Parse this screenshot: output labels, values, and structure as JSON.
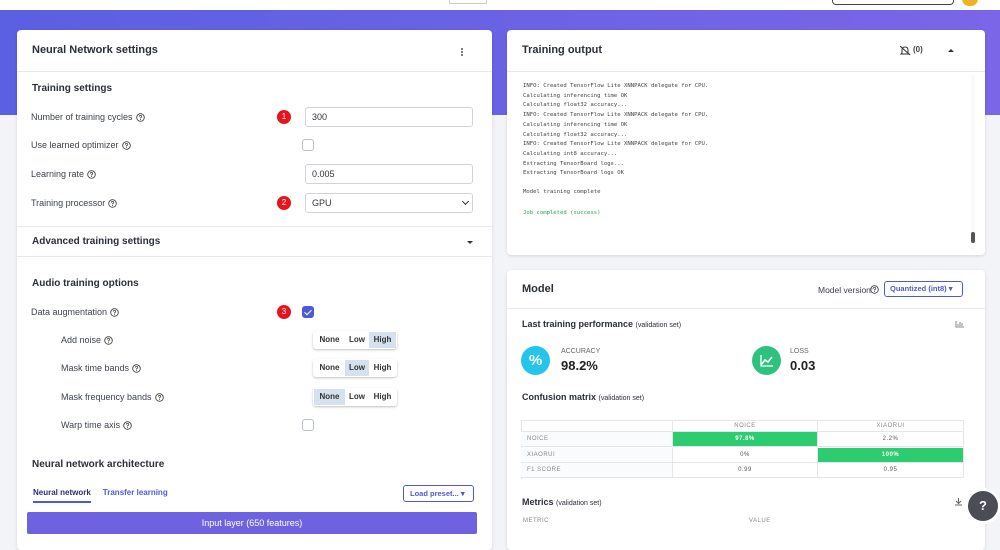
{
  "left": {
    "title": "Neural Network settings",
    "training_settings": {
      "title": "Training settings",
      "fields": [
        {
          "label": "Number of training cycles",
          "badge": "1",
          "control": "input",
          "value": "300"
        },
        {
          "label": "Use learned optimizer",
          "control": "checkbox",
          "checked": false
        },
        {
          "label": "Learning rate",
          "control": "input",
          "value": "0.005"
        },
        {
          "label": "Training processor",
          "badge": "2",
          "control": "select",
          "value": "GPU"
        }
      ]
    },
    "advanced": {
      "title": "Advanced training settings"
    },
    "audio": {
      "title": "Audio training options",
      "fields": [
        {
          "label": "Data augmentation",
          "badge": "3",
          "control": "checkbox",
          "checked": true
        },
        {
          "label": "Add noise",
          "control": "segmented",
          "options": [
            "None",
            "Low",
            "High"
          ],
          "selected": 2
        },
        {
          "label": "Mask time bands",
          "control": "segmented",
          "options": [
            "None",
            "Low",
            "High"
          ],
          "selected": 1
        },
        {
          "label": "Mask frequency bands",
          "control": "segmented",
          "options": [
            "None",
            "Low",
            "High"
          ],
          "selected": 0
        },
        {
          "label": "Warp time axis",
          "control": "checkbox",
          "checked": false
        }
      ]
    },
    "architecture": {
      "title": "Neural network architecture",
      "tabs": [
        "Neural network",
        "Transfer learning"
      ],
      "active_tab": 0,
      "preset_button": "Load preset...",
      "input_layer": "Input layer (650 features)"
    }
  },
  "output": {
    "title": "Training output",
    "warnings": "(0)",
    "log": [
      "INFO: Created TensorFlow Lite XNNPACK delegate for CPU.",
      "Calculating inferencing time OK",
      "Calculating float32 accuracy...",
      "INFO: Created TensorFlow Lite XNNPACK delegate for CPU.",
      "Calculating inferencing time OK",
      "Calculating float32 accuracy...",
      "INFO: Created TensorFlow Lite XNNPACK delegate for CPU.",
      "Calculating int8 accuracy...",
      "Extracting TensorBoard logs...",
      "Extracting TensorBoard logs OK"
    ],
    "complete_message": "Model training complete",
    "success_message": "Job completed (success)"
  },
  "model": {
    "title": "Model",
    "version_label": "Model version:",
    "version": "Quantized (int8)",
    "performance": {
      "title": "Last training performance",
      "note": "(validation set)",
      "accuracy": {
        "label": "ACCURACY",
        "value": "98.2%"
      },
      "loss": {
        "label": "LOSS",
        "value": "0.03"
      }
    },
    "confusion": {
      "title": "Confusion matrix",
      "note": "(validation set)",
      "columns": [
        "NOICE",
        "XIAORUI"
      ],
      "rows": [
        {
          "label": "NOICE",
          "cells": [
            "97.8%",
            "2.2%"
          ]
        },
        {
          "label": "XIAORUI",
          "cells": [
            "0%",
            "100%"
          ]
        },
        {
          "label": "F1 SCORE",
          "cells": [
            "0.99",
            "0.95"
          ]
        }
      ]
    },
    "metrics": {
      "title": "Metrics",
      "note": "(validation set)",
      "columns": [
        "METRIC",
        "VALUE"
      ]
    }
  },
  "help": "?"
}
